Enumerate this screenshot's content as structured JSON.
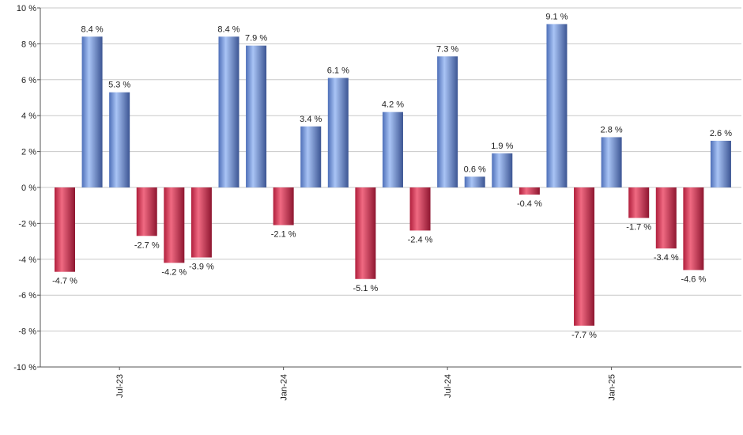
{
  "chart_data": {
    "type": "bar",
    "title": "",
    "xlabel": "",
    "ylabel": "",
    "ylim": [
      -10,
      10
    ],
    "y_ticks": [
      -10,
      -8,
      -6,
      -4,
      -2,
      0,
      2,
      4,
      6,
      8,
      10
    ],
    "y_tick_suffix": " %",
    "grid": "horizontal",
    "x_tick_labels": [
      {
        "label": "Jul-23",
        "at_index": 2
      },
      {
        "label": "Jan-24",
        "at_index": 8
      },
      {
        "label": "Jul-24",
        "at_index": 14
      },
      {
        "label": "Jan-25",
        "at_index": 20
      }
    ],
    "values": [
      -4.7,
      8.4,
      5.3,
      -2.7,
      -4.2,
      -3.9,
      8.4,
      7.9,
      -2.1,
      3.4,
      6.1,
      -5.1,
      4.2,
      -2.4,
      7.3,
      0.6,
      1.9,
      -0.4,
      9.1,
      -7.7,
      2.8,
      -1.7,
      -3.4,
      -4.6,
      2.6
    ],
    "data_labels": [
      "-4.7 %",
      "8.4 %",
      "5.3 %",
      "-2.7 %",
      "-4.2 %",
      "-3.9 %",
      "8.4 %",
      "7.9 %",
      "-2.1 %",
      "3.4 %",
      "6.1 %",
      "-5.1 %",
      "4.2 %",
      "-2.4 %",
      "7.3 %",
      "0.6 %",
      "1.9 %",
      "-0.4 %",
      "9.1 %",
      "-7.7 %",
      "2.8 %",
      "-1.7 %",
      "-3.4 %",
      "-4.6 %",
      "2.6 %"
    ],
    "colors": {
      "positive": "#6f95d8",
      "negative": "#d2334f",
      "grid": "#c8c8c8",
      "axis": "#555555"
    }
  }
}
